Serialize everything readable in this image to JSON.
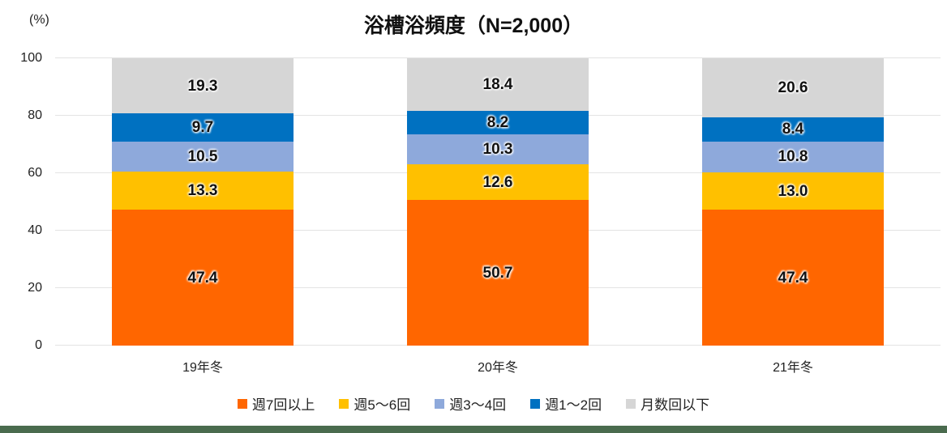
{
  "title": "浴槽浴頻度（N=2,000）",
  "y_axis_unit": "(%)",
  "chart_data": {
    "type": "bar",
    "stacked": true,
    "title": "浴槽浴頻度（N=2,000）",
    "ylabel": "(%)",
    "ylim": [
      0,
      100
    ],
    "yticks": [
      0,
      20,
      40,
      60,
      80,
      100
    ],
    "grid": true,
    "legend_position": "bottom",
    "categories": [
      "19年冬",
      "20年冬",
      "21年冬"
    ],
    "series": [
      {
        "name": "週7回以上",
        "color": "#FF6600",
        "values": [
          47.4,
          50.7,
          47.4
        ]
      },
      {
        "name": "週5〜6回",
        "color": "#FFC000",
        "values": [
          13.3,
          12.6,
          13.0
        ]
      },
      {
        "name": "週3〜4回",
        "color": "#8EA9DB",
        "values": [
          10.5,
          10.3,
          10.8
        ]
      },
      {
        "name": "週1〜2回",
        "color": "#0071C1",
        "values": [
          9.7,
          8.2,
          8.4
        ]
      },
      {
        "name": "月数回以下",
        "color": "#D6D6D6",
        "values": [
          19.3,
          18.4,
          20.6
        ]
      }
    ]
  },
  "colors": {
    "gridline": "#e3e3e3",
    "footer_accent": "#4A6B4E"
  }
}
